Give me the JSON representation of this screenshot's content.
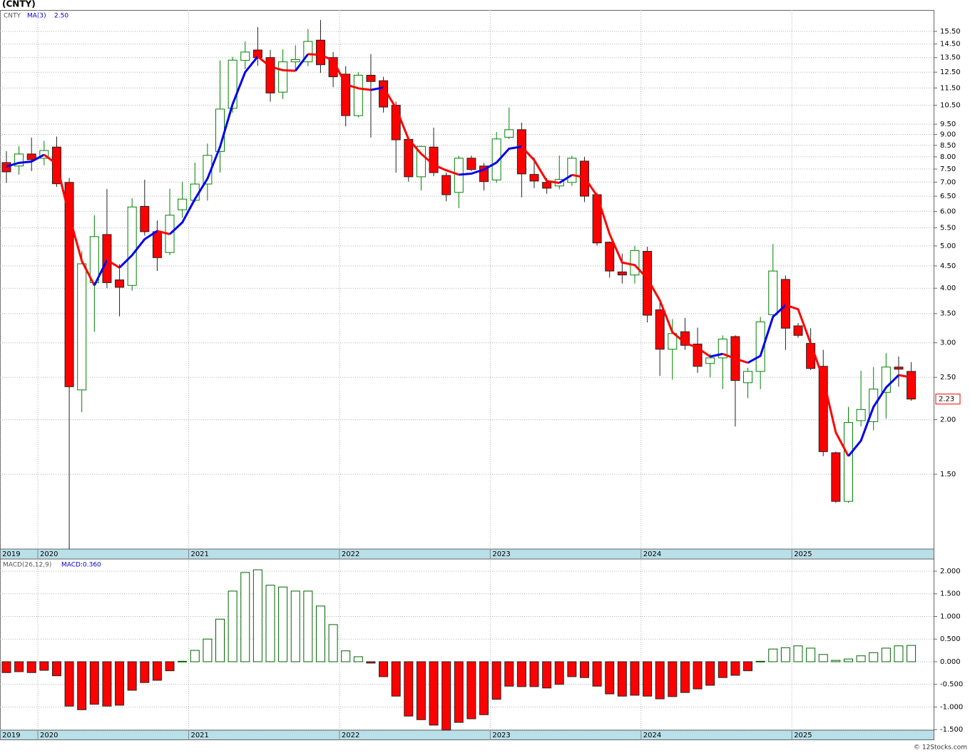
{
  "chart_data": [
    {
      "type": "candlestick",
      "title": "(CNTY)",
      "ticker": "CNTY",
      "log_scale": true,
      "grid": true,
      "x": [
        0,
        1,
        2,
        3,
        4,
        5,
        6,
        7,
        8,
        9,
        10,
        11,
        12,
        13,
        14,
        15,
        16,
        17,
        18,
        19,
        20,
        21,
        22,
        23,
        24,
        25,
        26,
        27,
        28,
        29,
        30,
        31,
        32,
        33,
        34,
        35,
        36,
        37,
        38,
        39,
        40,
        41,
        42,
        43,
        44,
        45,
        46,
        47,
        48,
        49,
        50,
        51,
        52,
        53,
        54,
        55,
        56,
        57,
        58,
        59,
        60,
        61,
        62,
        63,
        64,
        65,
        66,
        67,
        68,
        69,
        70,
        71,
        72
      ],
      "open": [
        7.76,
        7.62,
        8.12,
        7.94,
        8.42,
        6.99,
        2.34,
        4.12,
        5.31,
        4.18,
        4.06,
        6.16,
        5.39,
        4.83,
        6.05,
        6.36,
        6.93,
        8.23,
        10.33,
        13.3,
        14.05,
        13.5,
        11.25,
        13.2,
        13.2,
        14.8,
        13.5,
        12.37,
        9.94,
        12.3,
        11.95,
        10.5,
        8.77,
        7.2,
        8.42,
        7.25,
        6.63,
        7.94,
        7.62,
        7.08,
        8.87,
        9.23,
        7.29,
        6.99,
        6.86,
        6.99,
        7.82,
        6.55,
        5.1,
        4.36,
        4.29,
        4.86,
        3.57,
        2.9,
        3.18,
        2.98,
        2.69,
        2.77,
        3.1,
        2.43,
        2.58,
        3.48,
        4.19,
        3.28,
        2.99,
        2.65,
        1.68,
        1.3,
        1.99,
        1.98,
        2.31,
        2.64,
        2.58
      ],
      "high": [
        8.24,
        8.46,
        8.85,
        8.7,
        8.9,
        7.15,
        4.86,
        5.88,
        6.75,
        4.54,
        6.43,
        7.09,
        5.72,
        6.76,
        7.02,
        7.76,
        8.58,
        13.3,
        13.55,
        14.7,
        15.85,
        14.05,
        14.1,
        14.4,
        15.7,
        16.45,
        13.9,
        12.9,
        12.5,
        13.75,
        12.2,
        10.7,
        8.88,
        8.48,
        9.33,
        7.36,
        8.04,
        8.05,
        7.74,
        9.12,
        10.37,
        9.58,
        7.97,
        7.15,
        8.05,
        8.05,
        8.0,
        6.62,
        5.12,
        4.8,
        5.0,
        4.98,
        3.7,
        3.4,
        3.42,
        3.25,
        2.83,
        3.12,
        3.12,
        2.63,
        3.44,
        5.05,
        4.28,
        3.33,
        3.24,
        2.89,
        1.69,
        2.14,
        2.59,
        2.64,
        2.84,
        2.79,
        2.71
      ],
      "low": [
        6.97,
        7.28,
        7.42,
        7.65,
        6.83,
        1.01,
        2.08,
        3.18,
        4.0,
        3.45,
        3.95,
        5.28,
        4.38,
        4.76,
        5.8,
        6.31,
        6.35,
        7.36,
        10.1,
        12.7,
        12.92,
        10.7,
        10.85,
        12.65,
        12.9,
        12.45,
        11.55,
        9.4,
        9.85,
        8.85,
        10.1,
        7.36,
        7.02,
        6.7,
        7.22,
        6.33,
        6.1,
        7.42,
        6.7,
        6.97,
        8.78,
        6.46,
        6.78,
        6.58,
        6.74,
        6.86,
        6.3,
        5.01,
        4.23,
        4.1,
        4.1,
        3.34,
        2.52,
        2.47,
        2.89,
        2.56,
        2.5,
        2.35,
        1.93,
        2.24,
        2.35,
        3.43,
        2.89,
        3.08,
        2.6,
        1.65,
        1.29,
        1.29,
        1.93,
        1.89,
        2.01,
        2.38,
        2.21
      ],
      "close": [
        7.39,
        8.12,
        7.88,
        8.27,
        6.94,
        2.38,
        4.55,
        5.25,
        4.12,
        4.02,
        6.14,
        5.39,
        4.7,
        5.88,
        6.4,
        6.93,
        8.06,
        10.29,
        13.32,
        13.9,
        13.5,
        11.2,
        13.2,
        13.36,
        14.7,
        13.0,
        12.2,
        9.94,
        12.3,
        11.9,
        10.4,
        8.75,
        7.2,
        8.45,
        7.36,
        6.55,
        7.94,
        7.48,
        7.02,
        8.79,
        9.23,
        7.31,
        7.04,
        6.78,
        7.1,
        7.94,
        6.5,
        5.08,
        4.38,
        4.29,
        4.88,
        3.47,
        2.9,
        3.15,
        2.96,
        2.65,
        2.77,
        3.06,
        2.46,
        2.58,
        3.35,
        4.38,
        3.24,
        3.12,
        2.62,
        1.69,
        1.3,
        1.97,
        2.11,
        2.35,
        2.64,
        2.61,
        2.23
      ],
      "up_color": "#008000",
      "down_color": "#ff0000",
      "last_price_label": "2.23",
      "series": [
        {
          "name": "MA(3)",
          "value_label": "2.50",
          "up_color": "#0000ee",
          "down_color": "#ff0000",
          "values": [
            7.6,
            7.75,
            7.8,
            8.09,
            7.7,
            5.86,
            4.62,
            4.06,
            4.64,
            4.46,
            4.76,
            5.18,
            5.41,
            5.32,
            5.66,
            6.4,
            7.13,
            8.43,
            10.56,
            12.5,
            13.57,
            12.87,
            12.63,
            12.59,
            13.75,
            13.69,
            13.3,
            11.71,
            11.48,
            11.38,
            11.53,
            10.35,
            8.78,
            8.13,
            7.67,
            7.45,
            7.28,
            7.32,
            7.48,
            7.76,
            8.35,
            8.44,
            7.86,
            7.04,
            6.97,
            7.27,
            7.18,
            6.51,
            5.32,
            4.58,
            4.52,
            4.21,
            3.75,
            3.17,
            3.0,
            2.92,
            2.79,
            2.83,
            2.76,
            2.7,
            2.8,
            3.44,
            3.66,
            3.58,
            2.99,
            2.48,
            1.87,
            1.65,
            1.79,
            2.14,
            2.37,
            2.53,
            2.5
          ]
        }
      ],
      "xlim": [
        -0.51,
        73.84
      ],
      "xticks": [
        {
          "value": -0.5,
          "label": "2019"
        },
        {
          "value": 2.5,
          "label": "2020"
        },
        {
          "value": 14.5,
          "label": "2021"
        },
        {
          "value": 26.5,
          "label": "2022"
        },
        {
          "value": 38.5,
          "label": "2023"
        },
        {
          "value": 50.5,
          "label": "2024"
        },
        {
          "value": 62.5,
          "label": "2025"
        }
      ],
      "ylim": [
        1.011,
        17.35
      ],
      "yticks": [
        {
          "value": 1.5,
          "label": "1.50"
        },
        {
          "value": 2,
          "label": "2.00"
        },
        {
          "value": 2.5,
          "label": "2.50"
        },
        {
          "value": 3,
          "label": "3.00"
        },
        {
          "value": 3.5,
          "label": "3.50"
        },
        {
          "value": 4,
          "label": "4.00"
        },
        {
          "value": 4.5,
          "label": "4.50"
        },
        {
          "value": 5,
          "label": "5.00"
        },
        {
          "value": 5.5,
          "label": "5.50"
        },
        {
          "value": 6,
          "label": "6.00"
        },
        {
          "value": 6.5,
          "label": "6.50"
        },
        {
          "value": 7,
          "label": "7.00"
        },
        {
          "value": 7.5,
          "label": "7.50"
        },
        {
          "value": 8,
          "label": "8.00"
        },
        {
          "value": 8.5,
          "label": "8.50"
        },
        {
          "value": 9,
          "label": "9.00"
        },
        {
          "value": 9.5,
          "label": "9.50"
        },
        {
          "value": 10.5,
          "label": "10.50"
        },
        {
          "value": 11.5,
          "label": "11.50"
        },
        {
          "value": 12.5,
          "label": "12.50"
        },
        {
          "value": 13.5,
          "label": "13.50"
        },
        {
          "value": 14.5,
          "label": "14.50"
        },
        {
          "value": 15.5,
          "label": "15.50"
        }
      ]
    },
    {
      "type": "bar",
      "indicator": "MACD(26,12,9)",
      "value_label": "MACD:0.360",
      "grid": true,
      "x": [
        0,
        1,
        2,
        3,
        4,
        5,
        6,
        7,
        8,
        9,
        10,
        11,
        12,
        13,
        14,
        15,
        16,
        17,
        18,
        19,
        20,
        21,
        22,
        23,
        24,
        25,
        26,
        27,
        28,
        29,
        30,
        31,
        32,
        33,
        34,
        35,
        36,
        37,
        38,
        39,
        40,
        41,
        42,
        43,
        44,
        45,
        46,
        47,
        48,
        49,
        50,
        51,
        52,
        53,
        54,
        55,
        56,
        57,
        58,
        59,
        60,
        61,
        62,
        63,
        64,
        65,
        66,
        67,
        68,
        69,
        70,
        71,
        72
      ],
      "values": [
        -0.24,
        -0.22,
        -0.24,
        -0.19,
        -0.31,
        -0.98,
        -1.06,
        -0.94,
        -0.98,
        -0.96,
        -0.63,
        -0.46,
        -0.41,
        -0.2,
        0.01,
        0.25,
        0.5,
        0.94,
        1.56,
        1.97,
        2.03,
        1.69,
        1.65,
        1.56,
        1.56,
        1.23,
        0.82,
        0.24,
        0.11,
        -0.03,
        -0.33,
        -0.76,
        -1.2,
        -1.28,
        -1.4,
        -1.51,
        -1.34,
        -1.26,
        -1.17,
        -0.83,
        -0.54,
        -0.55,
        -0.55,
        -0.58,
        -0.5,
        -0.33,
        -0.35,
        -0.54,
        -0.71,
        -0.76,
        -0.74,
        -0.76,
        -0.82,
        -0.77,
        -0.68,
        -0.6,
        -0.52,
        -0.35,
        -0.3,
        -0.2,
        0.01,
        0.28,
        0.31,
        0.35,
        0.3,
        0.16,
        0.03,
        0.06,
        0.13,
        0.2,
        0.3,
        0.35,
        0.36
      ],
      "up_color": "#006400",
      "down_color": "#ff0000",
      "xlim": [
        -0.51,
        73.84
      ],
      "xticks": [
        {
          "value": -0.5,
          "label": "2019"
        },
        {
          "value": 2.5,
          "label": "2020"
        },
        {
          "value": 14.5,
          "label": "2021"
        },
        {
          "value": 26.5,
          "label": "2022"
        },
        {
          "value": 38.5,
          "label": "2023"
        },
        {
          "value": 50.5,
          "label": "2024"
        },
        {
          "value": 62.5,
          "label": "2025"
        }
      ],
      "ylim": [
        -1.512,
        2.236
      ],
      "yticks": [
        {
          "value": -1.5,
          "label": "-1.500"
        },
        {
          "value": -1,
          "label": "-1.000"
        },
        {
          "value": -0.5,
          "label": "-0.500"
        },
        {
          "value": 0,
          "label": "0.000"
        },
        {
          "value": 0.5,
          "label": "0.500"
        },
        {
          "value": 1,
          "label": "1.000"
        },
        {
          "value": 1.5,
          "label": "1.500"
        },
        {
          "value": 2,
          "label": "2.000"
        }
      ]
    }
  ],
  "footer": "© 12Stocks.com"
}
